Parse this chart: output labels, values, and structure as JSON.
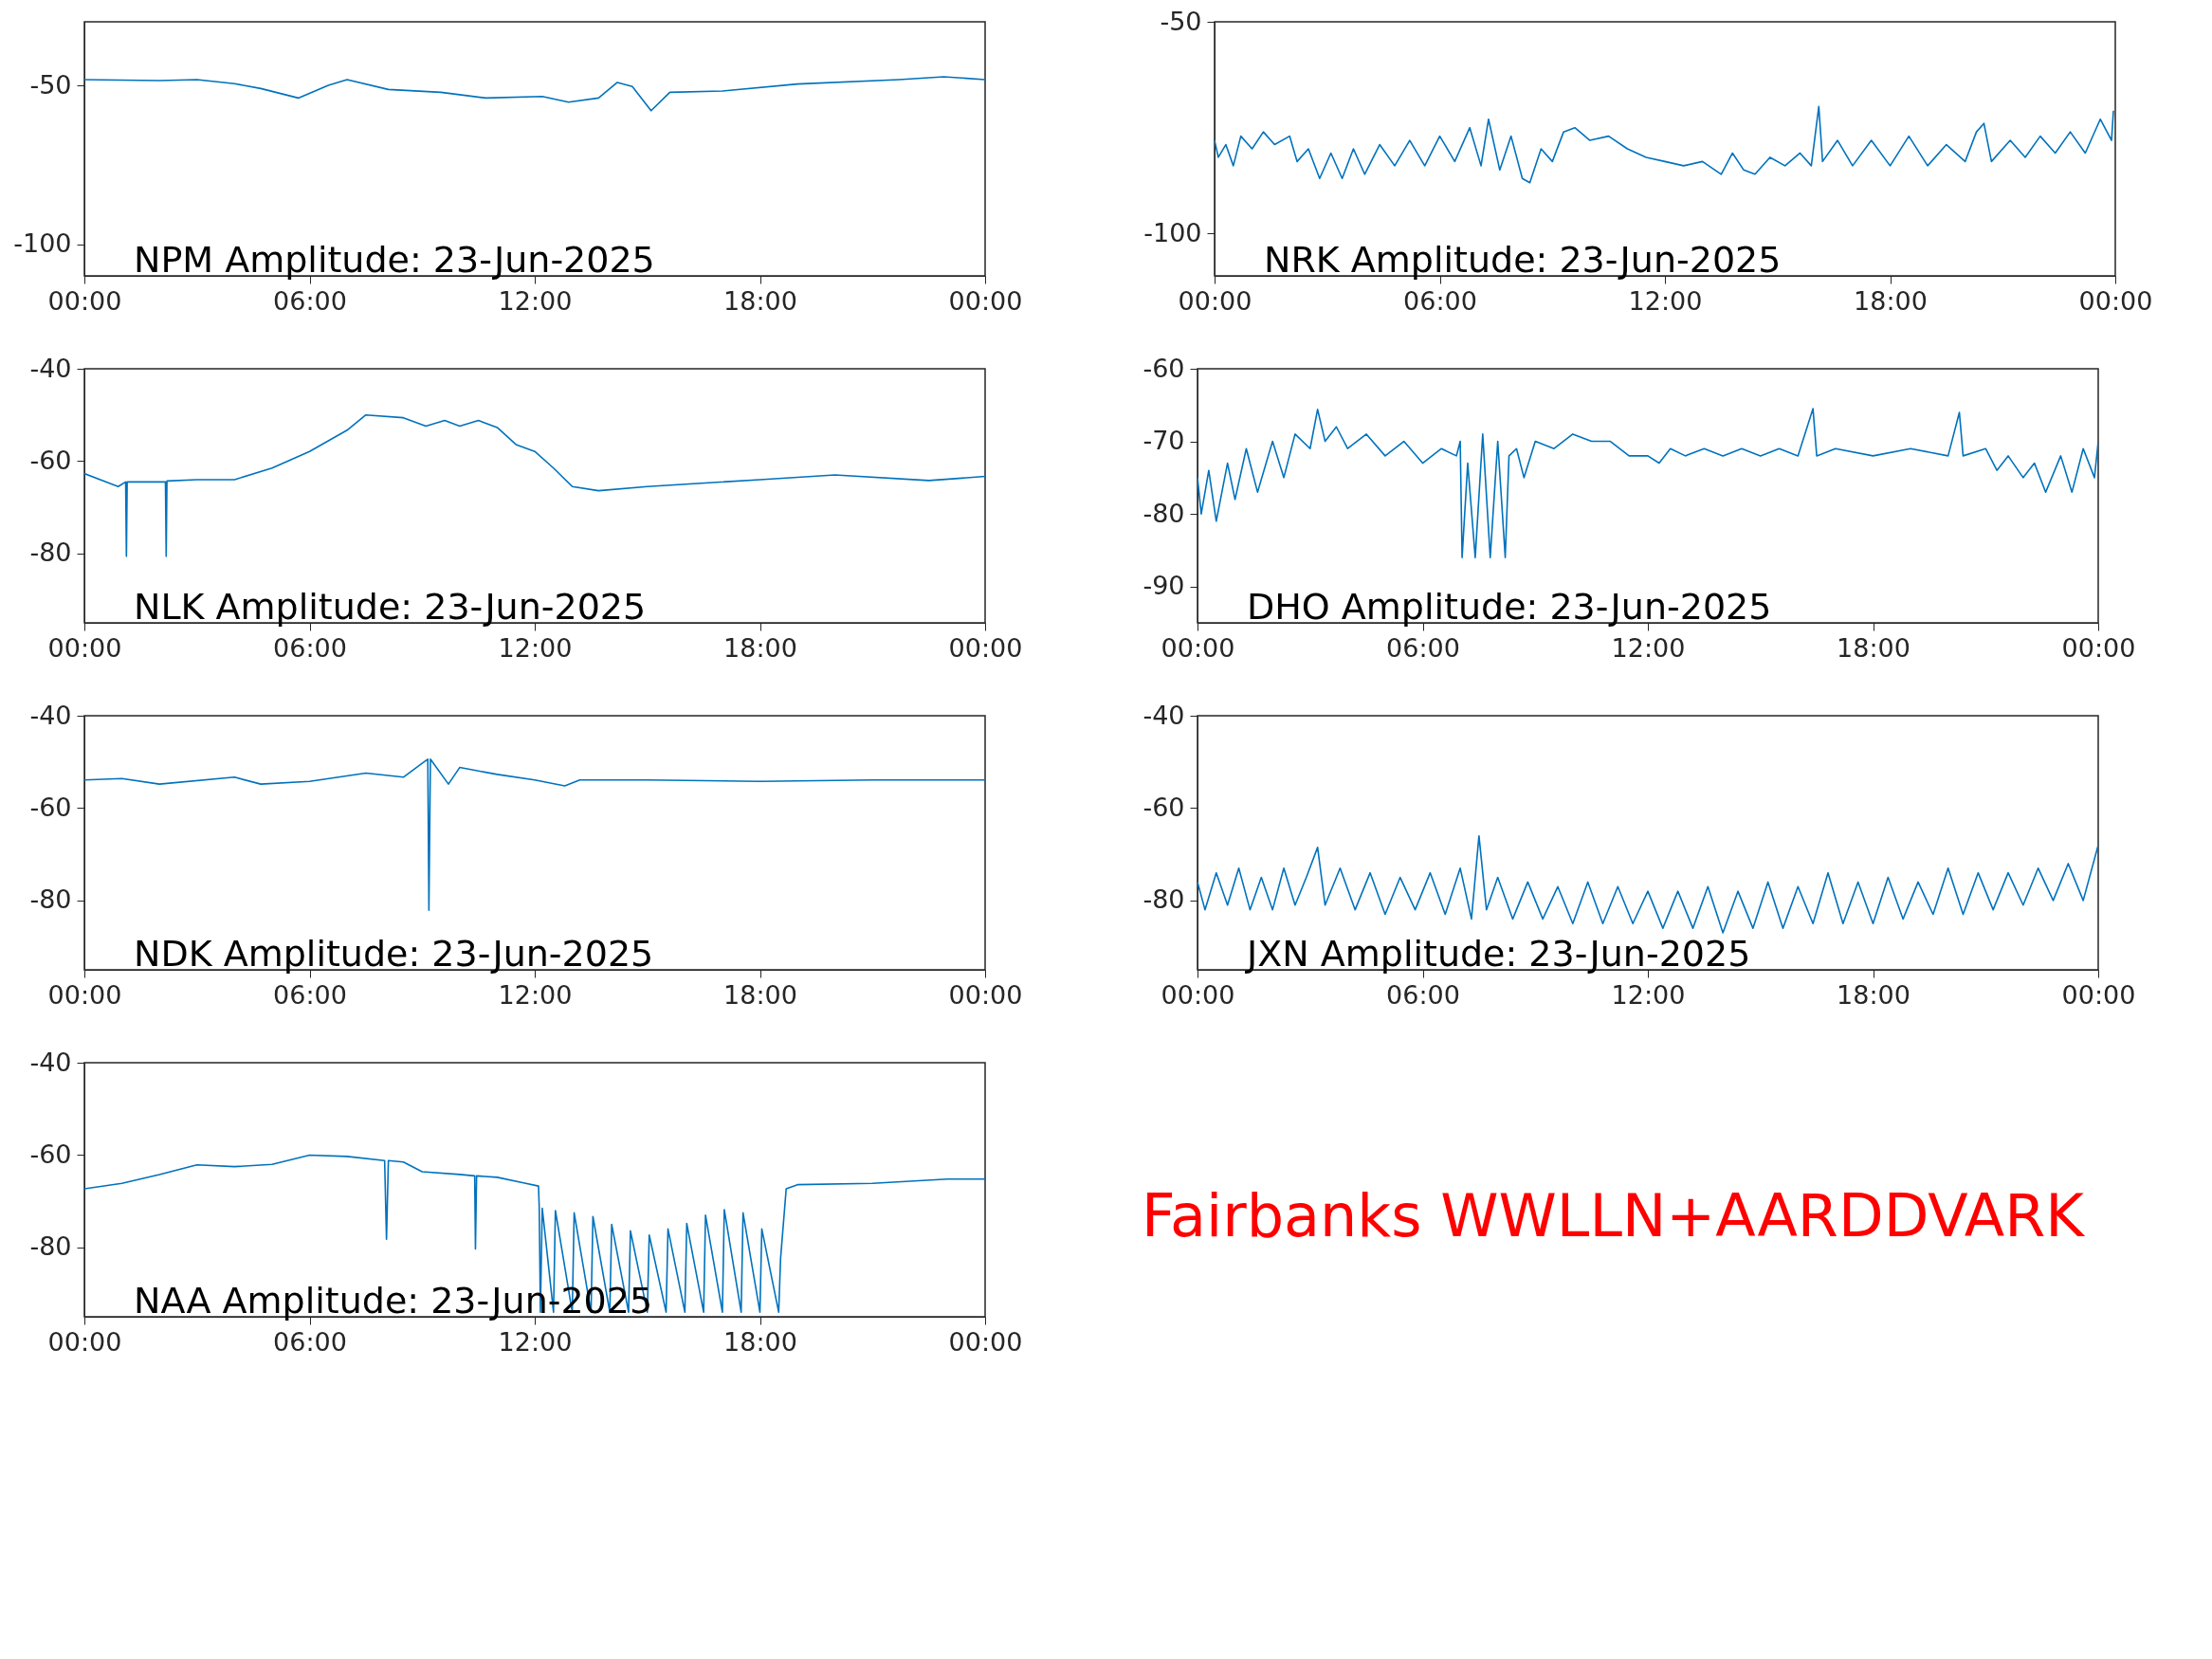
{
  "chart_data": [
    {
      "type": "line",
      "title": "NPM Amplitude: 23-Jun-2025",
      "xlim": [
        0,
        24
      ],
      "xticks": [
        {
          "value": 0,
          "label": "00:00"
        },
        {
          "value": 6,
          "label": "06:00"
        },
        {
          "value": 12,
          "label": "12:00"
        },
        {
          "value": 18,
          "label": "18:00"
        },
        {
          "value": 24,
          "label": "00:00"
        }
      ],
      "ylim": [
        -110,
        -30
      ],
      "yticks": [
        -100,
        -50
      ],
      "grid": false,
      "series": [
        {
          "color": "#0072bd",
          "x": [
            0,
            2,
            3,
            4,
            4.7,
            5.7,
            6.5,
            7,
            8.1,
            9.5,
            10.7,
            12.2,
            12.9,
            13.7,
            14.2,
            14.6,
            15.1,
            15.6,
            17,
            19,
            21.7,
            22.9,
            24
          ],
          "values": [
            -48.2,
            -48.5,
            -48.2,
            -49.5,
            -51,
            -54,
            -50,
            -48.2,
            -51.3,
            -52.2,
            -54,
            -53.5,
            -55.3,
            -54,
            -49.1,
            -50.4,
            -58,
            -52.2,
            -51.8,
            -49.6,
            -48.2,
            -47.3,
            -48.2
          ]
        }
      ]
    },
    {
      "type": "line",
      "title": "NRK Amplitude: 23-Jun-2025",
      "xlim": [
        0,
        24
      ],
      "xticks": [
        {
          "value": 0,
          "label": "00:00"
        },
        {
          "value": 6,
          "label": "06:00"
        },
        {
          "value": 12,
          "label": "12:00"
        },
        {
          "value": 18,
          "label": "18:00"
        },
        {
          "value": 24,
          "label": "00:00"
        }
      ],
      "ylim": [
        -110,
        -50
      ],
      "yticks": [
        -100,
        -50
      ],
      "grid": false,
      "series": [
        {
          "color": "#0072bd",
          "x": [
            0,
            0.1,
            0.3,
            0.5,
            0.7,
            1,
            1.3,
            1.6,
            2,
            2.2,
            2.5,
            2.8,
            3.1,
            3.4,
            3.7,
            4,
            4.4,
            4.8,
            5.2,
            5.6,
            6,
            6.4,
            6.8,
            7.1,
            7.3,
            7.6,
            7.9,
            8.2,
            8.4,
            8.7,
            9,
            9.3,
            9.6,
            10,
            10.5,
            11,
            11.5,
            12,
            12.5,
            13,
            13.5,
            13.8,
            14.1,
            14.4,
            14.8,
            15.2,
            15.6,
            15.9,
            16.1,
            16.2,
            16.6,
            17,
            17.5,
            18,
            18.5,
            19,
            19.5,
            20,
            20.3,
            20.5,
            20.7,
            21.2,
            21.6,
            22,
            22.4,
            22.8,
            23.2,
            23.6,
            23.9,
            23.95
          ],
          "values": [
            -78,
            -82,
            -79,
            -84,
            -77,
            -80,
            -76,
            -79,
            -77,
            -83,
            -80,
            -87,
            -81,
            -87,
            -80,
            -86,
            -79,
            -84,
            -78,
            -84,
            -77,
            -83,
            -75,
            -84,
            -73,
            -85,
            -77,
            -87,
            -88,
            -80,
            -83,
            -76,
            -75,
            -78,
            -77,
            -80,
            -82,
            -83,
            -84,
            -83,
            -86,
            -81,
            -85,
            -86,
            -82,
            -84,
            -81,
            -84,
            -70,
            -83,
            -78,
            -84,
            -78,
            -84,
            -77,
            -84,
            -79,
            -83,
            -76,
            -74,
            -83,
            -78,
            -82,
            -77,
            -81,
            -76,
            -81,
            -73,
            -78,
            -71
          ]
        }
      ]
    },
    {
      "type": "line",
      "title": "NLK Amplitude: 23-Jun-2025",
      "xlim": [
        0,
        24
      ],
      "xticks": [
        {
          "value": 0,
          "label": "00:00"
        },
        {
          "value": 6,
          "label": "06:00"
        },
        {
          "value": 12,
          "label": "12:00"
        },
        {
          "value": 18,
          "label": "18:00"
        },
        {
          "value": 24,
          "label": "00:00"
        }
      ],
      "ylim": [
        -95,
        -40
      ],
      "yticks": [
        -80,
        -60,
        -40
      ],
      "grid": false,
      "series": [
        {
          "color": "#0072bd",
          "x": [
            0,
            0.9,
            1.1,
            1.12,
            1.14,
            2,
            2.16,
            2.18,
            2.2,
            3,
            4,
            5,
            6,
            7,
            7.5,
            8.5,
            9.1,
            9.6,
            10,
            10.5,
            11,
            11.5,
            12,
            12.5,
            13,
            13.7,
            15,
            18,
            20,
            22.5,
            24
          ],
          "values": [
            -62.7,
            -65.5,
            -64.5,
            -80.6,
            -64.5,
            -64.5,
            -64.5,
            -80.6,
            -64.3,
            -64,
            -64,
            -61.5,
            -57.9,
            -53.3,
            -50,
            -50.6,
            -52.4,
            -51.2,
            -52.4,
            -51.2,
            -52.7,
            -56.4,
            -57.9,
            -61.5,
            -65.5,
            -66.4,
            -65.5,
            -64,
            -63,
            -64.2,
            -63.3
          ]
        }
      ]
    },
    {
      "type": "line",
      "title": "DHO Amplitude: 23-Jun-2025",
      "xlim": [
        0,
        24
      ],
      "xticks": [
        {
          "value": 0,
          "label": "00:00"
        },
        {
          "value": 6,
          "label": "06:00"
        },
        {
          "value": 12,
          "label": "12:00"
        },
        {
          "value": 18,
          "label": "18:00"
        },
        {
          "value": 24,
          "label": "00:00"
        }
      ],
      "ylim": [
        -95,
        -60
      ],
      "yticks": [
        -90,
        -80,
        -70,
        -60
      ],
      "grid": false,
      "series": [
        {
          "color": "#0072bd",
          "x": [
            0,
            0.1,
            0.3,
            0.5,
            0.8,
            1,
            1.3,
            1.6,
            2,
            2.3,
            2.6,
            3,
            3.2,
            3.4,
            3.7,
            4,
            4.5,
            5,
            5.5,
            6,
            6.5,
            6.9,
            7,
            7.05,
            7.2,
            7.4,
            7.6,
            7.8,
            8,
            8.2,
            8.3,
            8.5,
            8.7,
            9,
            9.5,
            10,
            10.5,
            11,
            11.5,
            12,
            12.3,
            12.6,
            13,
            13.5,
            14,
            14.5,
            15,
            15.5,
            16,
            16.4,
            16.5,
            17,
            18,
            19,
            20,
            20.3,
            20.4,
            21,
            21.3,
            21.6,
            22,
            22.3,
            22.6,
            23,
            23.3,
            23.6,
            23.9,
            24
          ],
          "values": [
            -75,
            -80,
            -74,
            -81,
            -73,
            -78,
            -71,
            -77,
            -70,
            -75,
            -69,
            -71,
            -65.6,
            -70,
            -68,
            -71,
            -69,
            -72,
            -70,
            -73,
            -71,
            -72,
            -70,
            -86,
            -73,
            -86,
            -69,
            -86,
            -70,
            -86,
            -72,
            -71,
            -75,
            -70,
            -71,
            -69,
            -70,
            -70,
            -72,
            -72,
            -73,
            -71,
            -72,
            -71,
            -72,
            -71,
            -72,
            -71,
            -72,
            -65.5,
            -72,
            -71,
            -72,
            -71,
            -72,
            -66,
            -72,
            -71,
            -74,
            -72,
            -75,
            -73,
            -77,
            -72,
            -77,
            -71,
            -75,
            -70
          ]
        }
      ]
    },
    {
      "type": "line",
      "title": "NDK Amplitude: 23-Jun-2025",
      "xlim": [
        0,
        24
      ],
      "xticks": [
        {
          "value": 0,
          "label": "00:00"
        },
        {
          "value": 6,
          "label": "06:00"
        },
        {
          "value": 12,
          "label": "12:00"
        },
        {
          "value": 18,
          "label": "18:00"
        },
        {
          "value": 24,
          "label": "00:00"
        }
      ],
      "ylim": [
        -95,
        -40
      ],
      "yticks": [
        -80,
        -60,
        -40
      ],
      "grid": false,
      "series": [
        {
          "color": "#0072bd",
          "x": [
            0,
            1,
            2,
            4,
            4.7,
            6,
            7.5,
            8.5,
            9,
            9.15,
            9.18,
            9.22,
            9.7,
            10,
            11,
            12,
            12.8,
            13.2,
            15,
            18,
            21,
            24
          ],
          "values": [
            -53.9,
            -53.6,
            -54.8,
            -53.3,
            -54.8,
            -54.2,
            -52.4,
            -53.3,
            -50.3,
            -49.4,
            -82.1,
            -49.4,
            -54.8,
            -51.2,
            -52.7,
            -53.9,
            -55.2,
            -53.9,
            -53.9,
            -54.2,
            -53.9,
            -53.9
          ]
        }
      ]
    },
    {
      "type": "line",
      "title": "JXN Amplitude: 23-Jun-2025",
      "xlim": [
        0,
        24
      ],
      "xticks": [
        {
          "value": 0,
          "label": "00:00"
        },
        {
          "value": 6,
          "label": "06:00"
        },
        {
          "value": 12,
          "label": "12:00"
        },
        {
          "value": 18,
          "label": "18:00"
        },
        {
          "value": 24,
          "label": "00:00"
        }
      ],
      "ylim": [
        -95,
        -40
      ],
      "yticks": [
        -80,
        -60,
        -40
      ],
      "grid": false,
      "series": [
        {
          "color": "#0072bd",
          "x": [
            0,
            0.2,
            0.5,
            0.8,
            1.1,
            1.4,
            1.7,
            2,
            2.3,
            2.6,
            2.9,
            3.2,
            3.4,
            3.8,
            4.2,
            4.6,
            5,
            5.4,
            5.8,
            6.2,
            6.6,
            7,
            7.3,
            7.5,
            7.7,
            8,
            8.4,
            8.8,
            9.2,
            9.6,
            10,
            10.4,
            10.8,
            11.2,
            11.6,
            12,
            12.4,
            12.8,
            13.2,
            13.6,
            14,
            14.4,
            14.8,
            15.2,
            15.6,
            16,
            16.4,
            16.8,
            17.2,
            17.6,
            18,
            18.4,
            18.8,
            19.2,
            19.6,
            20,
            20.4,
            20.8,
            21.2,
            21.6,
            22,
            22.4,
            22.8,
            23.2,
            23.6,
            24
          ],
          "values": [
            -76,
            -82,
            -74,
            -81,
            -73,
            -82,
            -75,
            -82,
            -73,
            -81,
            -75,
            -68.5,
            -81,
            -73,
            -82,
            -74,
            -83,
            -75,
            -82,
            -74,
            -83,
            -73,
            -84,
            -66,
            -82,
            -75,
            -84,
            -76,
            -84,
            -77,
            -85,
            -76,
            -85,
            -77,
            -85,
            -78,
            -86,
            -78,
            -86,
            -77,
            -87,
            -78,
            -86,
            -76,
            -86,
            -77,
            -85,
            -74,
            -85,
            -76,
            -85,
            -75,
            -84,
            -76,
            -83,
            -73,
            -83,
            -74,
            -82,
            -74,
            -81,
            -73,
            -80,
            -72,
            -80,
            -68
          ]
        }
      ]
    },
    {
      "type": "line",
      "title": "NAA Amplitude: 23-Jun-2025",
      "xlim": [
        0,
        24
      ],
      "xticks": [
        {
          "value": 0,
          "label": "00:00"
        },
        {
          "value": 6,
          "label": "06:00"
        },
        {
          "value": 12,
          "label": "12:00"
        },
        {
          "value": 18,
          "label": "18:00"
        },
        {
          "value": 24,
          "label": "00:00"
        }
      ],
      "ylim": [
        -95,
        -40
      ],
      "yticks": [
        -80,
        -60,
        -40
      ],
      "grid": false,
      "series": [
        {
          "color": "#0072bd",
          "x": [
            0,
            1,
            2,
            3,
            4,
            5,
            6,
            7,
            8,
            8.05,
            8.1,
            8.5,
            9,
            10,
            10.4,
            10.42,
            10.45,
            11,
            11.7,
            12.1,
            12.12,
            12.15,
            12.2,
            12.5,
            12.55,
            13,
            13.05,
            13.5,
            13.55,
            14,
            14.05,
            14.5,
            14.55,
            15,
            15.05,
            15.5,
            15.55,
            16,
            16.05,
            16.5,
            16.55,
            17,
            17.05,
            17.5,
            17.55,
            18,
            18.05,
            18.5,
            18.55,
            18.7,
            19,
            21,
            23,
            24
          ],
          "values": [
            -67.3,
            -66.1,
            -64.2,
            -62.1,
            -62.5,
            -62,
            -60,
            -60.3,
            -61.2,
            -78.2,
            -61.2,
            -61.5,
            -63.6,
            -64.2,
            -64.5,
            -80.3,
            -64.5,
            -64.8,
            -66,
            -66.7,
            -71.5,
            -94,
            -71.5,
            -94,
            -72,
            -94,
            -72.5,
            -94,
            -73.3,
            -94,
            -75,
            -94,
            -76.4,
            -94,
            -77.3,
            -94,
            -76,
            -94,
            -74.8,
            -94,
            -73,
            -94,
            -71.8,
            -94,
            -72.5,
            -94,
            -76,
            -94,
            -82.4,
            -67.3,
            -66.4,
            -66.1,
            -65.2,
            -65.2
          ]
        }
      ]
    },
    {
      "type": "other",
      "annotations": [
        "Fairbanks WWLLN+AARDDVARK"
      ]
    }
  ]
}
